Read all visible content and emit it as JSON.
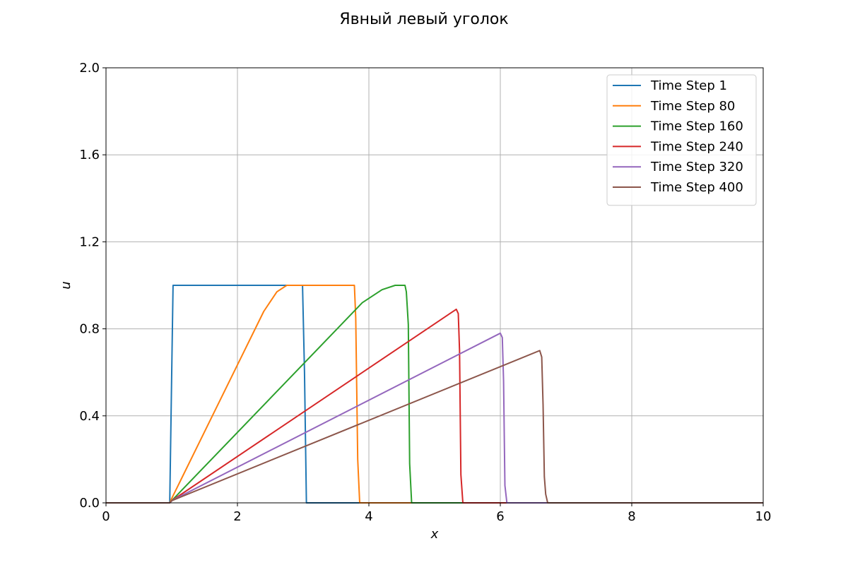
{
  "chart_data": {
    "type": "line",
    "title": "Явный левый уголок",
    "xlabel": "x",
    "ylabel": "u",
    "xlim": [
      0,
      10
    ],
    "ylim": [
      0,
      2
    ],
    "xticks": [
      0,
      2,
      4,
      6,
      8,
      10
    ],
    "yticks": [
      0.0,
      0.4,
      0.8,
      1.2,
      1.6,
      2.0
    ],
    "xtick_labels": [
      "0",
      "2",
      "4",
      "6",
      "8",
      "10"
    ],
    "ytick_labels": [
      "0.0",
      "0.4",
      "0.8",
      "1.2",
      "1.6",
      "2.0"
    ],
    "grid": true,
    "legend_position": "top-right",
    "series": [
      {
        "name": "Time Step 1",
        "color": "#1f77b4",
        "x": [
          0,
          0.97,
          1.0,
          1.02,
          1.05,
          2.99,
          3.02,
          3.05,
          10
        ],
        "y": [
          0,
          0,
          0.6,
          1.0,
          1.0,
          1.0,
          0.6,
          0,
          0
        ]
      },
      {
        "name": "Time Step 80",
        "color": "#ff7f0e",
        "x": [
          0,
          0.97,
          1.0,
          2.4,
          2.6,
          2.75,
          2.9,
          3.78,
          3.8,
          3.83,
          3.86,
          10
        ],
        "y": [
          0,
          0,
          0.02,
          0.88,
          0.97,
          1.0,
          1.0,
          1.0,
          0.85,
          0.2,
          0,
          0
        ]
      },
      {
        "name": "Time Step 160",
        "color": "#2ca02c",
        "x": [
          0,
          0.97,
          1.0,
          3.9,
          4.2,
          4.4,
          4.55,
          4.57,
          4.6,
          4.62,
          4.65,
          10
        ],
        "y": [
          0,
          0,
          0.01,
          0.92,
          0.98,
          1.0,
          1.0,
          0.97,
          0.82,
          0.18,
          0,
          0
        ]
      },
      {
        "name": "Time Step 240",
        "color": "#d62728",
        "x": [
          0,
          0.97,
          1.0,
          5.33,
          5.36,
          5.38,
          5.4,
          5.43,
          10
        ],
        "y": [
          0,
          0,
          0.01,
          0.89,
          0.87,
          0.7,
          0.13,
          0,
          0
        ]
      },
      {
        "name": "Time Step 320",
        "color": "#9467bd",
        "x": [
          0,
          0.97,
          1.0,
          6.0,
          6.03,
          6.05,
          6.07,
          6.1,
          10
        ],
        "y": [
          0,
          0,
          0.01,
          0.78,
          0.76,
          0.56,
          0.08,
          0,
          0
        ]
      },
      {
        "name": "Time Step 400",
        "color": "#8c564b",
        "x": [
          0,
          0.97,
          1.0,
          6.6,
          6.63,
          6.65,
          6.67,
          6.69,
          6.72,
          10
        ],
        "y": [
          0,
          0,
          0.01,
          0.7,
          0.67,
          0.45,
          0.12,
          0.04,
          0,
          0
        ]
      }
    ]
  }
}
